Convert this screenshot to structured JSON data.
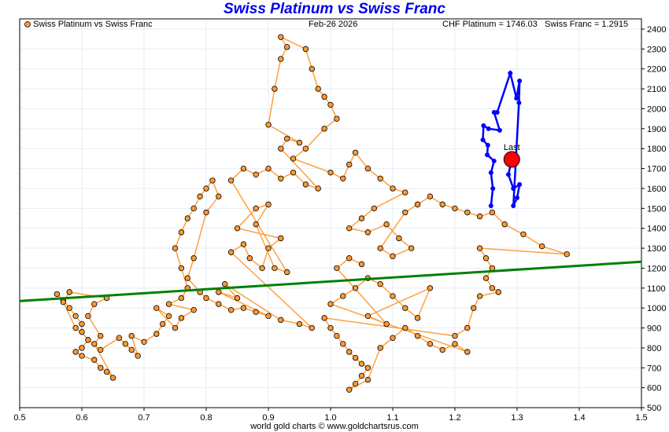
{
  "chart_data": {
    "type": "scatter",
    "title": "Swiss Platinum vs Swiss Franc",
    "legend": "Swiss Platinum vs Swiss Franc",
    "date": "Feb-26  2026",
    "readout_platinum": "CHF Platinum = 1746.03",
    "readout_franc": "Swiss Franc = 1.2915",
    "footer": "world gold charts © www.goldchartsrus.com",
    "xlabel": "",
    "ylabel": "",
    "xlim": [
      0.5,
      1.5
    ],
    "ylim": [
      500,
      2450
    ],
    "x_ticks": [
      "0.5",
      "0.6",
      "0.7",
      "0.8",
      "0.9",
      "1.0",
      "1.1",
      "1.2",
      "1.3",
      "1.4",
      "1.5"
    ],
    "y_ticks": [
      "500",
      "600",
      "700",
      "800",
      "900",
      "1000",
      "1100",
      "1200",
      "1300",
      "1400",
      "1500",
      "1600",
      "1700",
      "1800",
      "1900",
      "2000",
      "2100",
      "2200",
      "2300",
      "2400"
    ],
    "grid": true,
    "legend_position": "top-left",
    "colors": {
      "history": "#ff9933",
      "history_line": "#ffa040",
      "recent": "#0000ff",
      "trend": "#008000",
      "last": "#ff0000",
      "title": "#0000ee"
    },
    "trend_line": {
      "x": [
        0.5,
        1.5
      ],
      "y": [
        1035,
        1232
      ]
    },
    "last_point": {
      "label": "Last",
      "x": 1.2915,
      "y": 1746.03
    },
    "history": [
      [
        0.56,
        1070
      ],
      [
        0.57,
        1040
      ],
      [
        0.58,
        1000
      ],
      [
        0.59,
        960
      ],
      [
        0.6,
        920
      ],
      [
        0.6,
        880
      ],
      [
        0.61,
        840
      ],
      [
        0.6,
        800
      ],
      [
        0.59,
        780
      ],
      [
        0.6,
        760
      ],
      [
        0.62,
        740
      ],
      [
        0.63,
        700
      ],
      [
        0.64,
        680
      ],
      [
        0.65,
        650
      ],
      [
        0.62,
        820
      ],
      [
        0.63,
        860
      ],
      [
        0.61,
        960
      ],
      [
        0.62,
        1020
      ],
      [
        0.64,
        1050
      ],
      [
        0.58,
        1080
      ],
      [
        0.57,
        1030
      ],
      [
        0.59,
        900
      ],
      [
        0.63,
        790
      ],
      [
        0.66,
        850
      ],
      [
        0.67,
        820
      ],
      [
        0.68,
        790
      ],
      [
        0.69,
        760
      ],
      [
        0.68,
        860
      ],
      [
        0.7,
        830
      ],
      [
        0.72,
        870
      ],
      [
        0.73,
        920
      ],
      [
        0.74,
        960
      ],
      [
        0.72,
        1000
      ],
      [
        0.75,
        900
      ],
      [
        0.76,
        950
      ],
      [
        0.78,
        990
      ],
      [
        0.74,
        1020
      ],
      [
        0.76,
        1050
      ],
      [
        0.77,
        1100
      ],
      [
        0.76,
        1200
      ],
      [
        0.75,
        1300
      ],
      [
        0.76,
        1380
      ],
      [
        0.77,
        1450
      ],
      [
        0.78,
        1500
      ],
      [
        0.79,
        1560
      ],
      [
        0.8,
        1600
      ],
      [
        0.81,
        1640
      ],
      [
        0.82,
        1560
      ],
      [
        0.8,
        1480
      ],
      [
        0.78,
        1250
      ],
      [
        0.77,
        1150
      ],
      [
        0.79,
        1080
      ],
      [
        0.8,
        1050
      ],
      [
        0.82,
        1020
      ],
      [
        0.84,
        990
      ],
      [
        0.86,
        1000
      ],
      [
        0.88,
        980
      ],
      [
        0.9,
        960
      ],
      [
        0.82,
        1080
      ],
      [
        0.85,
        1050
      ],
      [
        0.83,
        1120
      ],
      [
        0.92,
        940
      ],
      [
        0.95,
        920
      ],
      [
        0.97,
        900
      ],
      [
        0.84,
        1280
      ],
      [
        0.86,
        1320
      ],
      [
        0.87,
        1250
      ],
      [
        0.89,
        1200
      ],
      [
        0.9,
        1300
      ],
      [
        0.92,
        1350
      ],
      [
        0.85,
        1400
      ],
      [
        0.88,
        1500
      ],
      [
        0.9,
        1520
      ],
      [
        0.88,
        1420
      ],
      [
        0.91,
        1200
      ],
      [
        0.93,
        1180
      ],
      [
        0.84,
        1640
      ],
      [
        0.86,
        1700
      ],
      [
        0.88,
        1670
      ],
      [
        0.9,
        1700
      ],
      [
        0.92,
        1650
      ],
      [
        0.94,
        1680
      ],
      [
        0.96,
        1620
      ],
      [
        0.98,
        1600
      ],
      [
        0.92,
        1800
      ],
      [
        0.93,
        1850
      ],
      [
        0.95,
        1830
      ],
      [
        0.9,
        1920
      ],
      [
        0.91,
        2100
      ],
      [
        0.92,
        2250
      ],
      [
        0.93,
        2310
      ],
      [
        0.92,
        2360
      ],
      [
        0.96,
        2300
      ],
      [
        0.97,
        2200
      ],
      [
        0.98,
        2100
      ],
      [
        0.99,
        2060
      ],
      [
        1.0,
        2020
      ],
      [
        1.01,
        1950
      ],
      [
        0.99,
        1900
      ],
      [
        0.96,
        1800
      ],
      [
        0.94,
        1750
      ],
      [
        1.0,
        1680
      ],
      [
        1.02,
        1650
      ],
      [
        1.03,
        1720
      ],
      [
        1.04,
        1780
      ],
      [
        1.06,
        1700
      ],
      [
        1.08,
        1650
      ],
      [
        1.1,
        1600
      ],
      [
        1.12,
        1580
      ],
      [
        1.07,
        1500
      ],
      [
        1.05,
        1450
      ],
      [
        1.03,
        1400
      ],
      [
        1.06,
        1380
      ],
      [
        1.09,
        1420
      ],
      [
        1.11,
        1350
      ],
      [
        1.13,
        1300
      ],
      [
        1.1,
        1260
      ],
      [
        1.08,
        1300
      ],
      [
        1.12,
        1480
      ],
      [
        1.14,
        1520
      ],
      [
        1.16,
        1560
      ],
      [
        1.18,
        1520
      ],
      [
        1.2,
        1500
      ],
      [
        1.22,
        1480
      ],
      [
        1.24,
        1460
      ],
      [
        1.26,
        1480
      ],
      [
        1.28,
        1420
      ],
      [
        1.31,
        1370
      ],
      [
        1.34,
        1310
      ],
      [
        1.38,
        1270
      ],
      [
        1.24,
        1300
      ],
      [
        1.25,
        1250
      ],
      [
        1.26,
        1200
      ],
      [
        1.25,
        1150
      ],
      [
        1.26,
        1100
      ],
      [
        1.27,
        1080
      ],
      [
        1.24,
        1060
      ],
      [
        1.23,
        1000
      ],
      [
        1.22,
        900
      ],
      [
        1.2,
        860
      ],
      [
        0.99,
        950
      ],
      [
        1.0,
        900
      ],
      [
        1.01,
        860
      ],
      [
        1.02,
        820
      ],
      [
        1.03,
        780
      ],
      [
        1.04,
        750
      ],
      [
        1.05,
        720
      ],
      [
        1.06,
        700
      ],
      [
        1.05,
        660
      ],
      [
        1.04,
        620
      ],
      [
        1.03,
        590
      ],
      [
        1.06,
        640
      ],
      [
        1.08,
        800
      ],
      [
        1.1,
        850
      ],
      [
        1.12,
        900
      ],
      [
        1.14,
        860
      ],
      [
        1.16,
        820
      ],
      [
        1.18,
        790
      ],
      [
        1.2,
        820
      ],
      [
        1.22,
        780
      ],
      [
        1.0,
        1020
      ],
      [
        1.02,
        1060
      ],
      [
        1.04,
        1100
      ],
      [
        1.06,
        1150
      ],
      [
        1.08,
        1120
      ],
      [
        1.1,
        1060
      ],
      [
        1.12,
        1000
      ],
      [
        1.14,
        950
      ],
      [
        1.16,
        1100
      ],
      [
        1.06,
        960
      ],
      [
        1.09,
        920
      ],
      [
        1.01,
        1200
      ],
      [
        1.03,
        1250
      ],
      [
        1.05,
        1220
      ]
    ],
    "recent": [
      [
        1.258,
        1513
      ],
      [
        1.261,
        1600
      ],
      [
        1.258,
        1679
      ],
      [
        1.263,
        1738
      ],
      [
        1.252,
        1769
      ],
      [
        1.253,
        1817
      ],
      [
        1.245,
        1844
      ],
      [
        1.246,
        1915
      ],
      [
        1.254,
        1900
      ],
      [
        1.272,
        1892
      ],
      [
        1.263,
        1982
      ],
      [
        1.268,
        1982
      ],
      [
        1.289,
        2179
      ],
      [
        1.299,
        2053
      ],
      [
        1.304,
        2140
      ],
      [
        1.303,
        2030
      ],
      [
        1.294,
        1513
      ],
      [
        1.3,
        1553
      ],
      [
        1.304,
        1620
      ],
      [
        1.294,
        1600
      ],
      [
        1.286,
        1670
      ],
      [
        1.2915,
        1746
      ]
    ]
  }
}
